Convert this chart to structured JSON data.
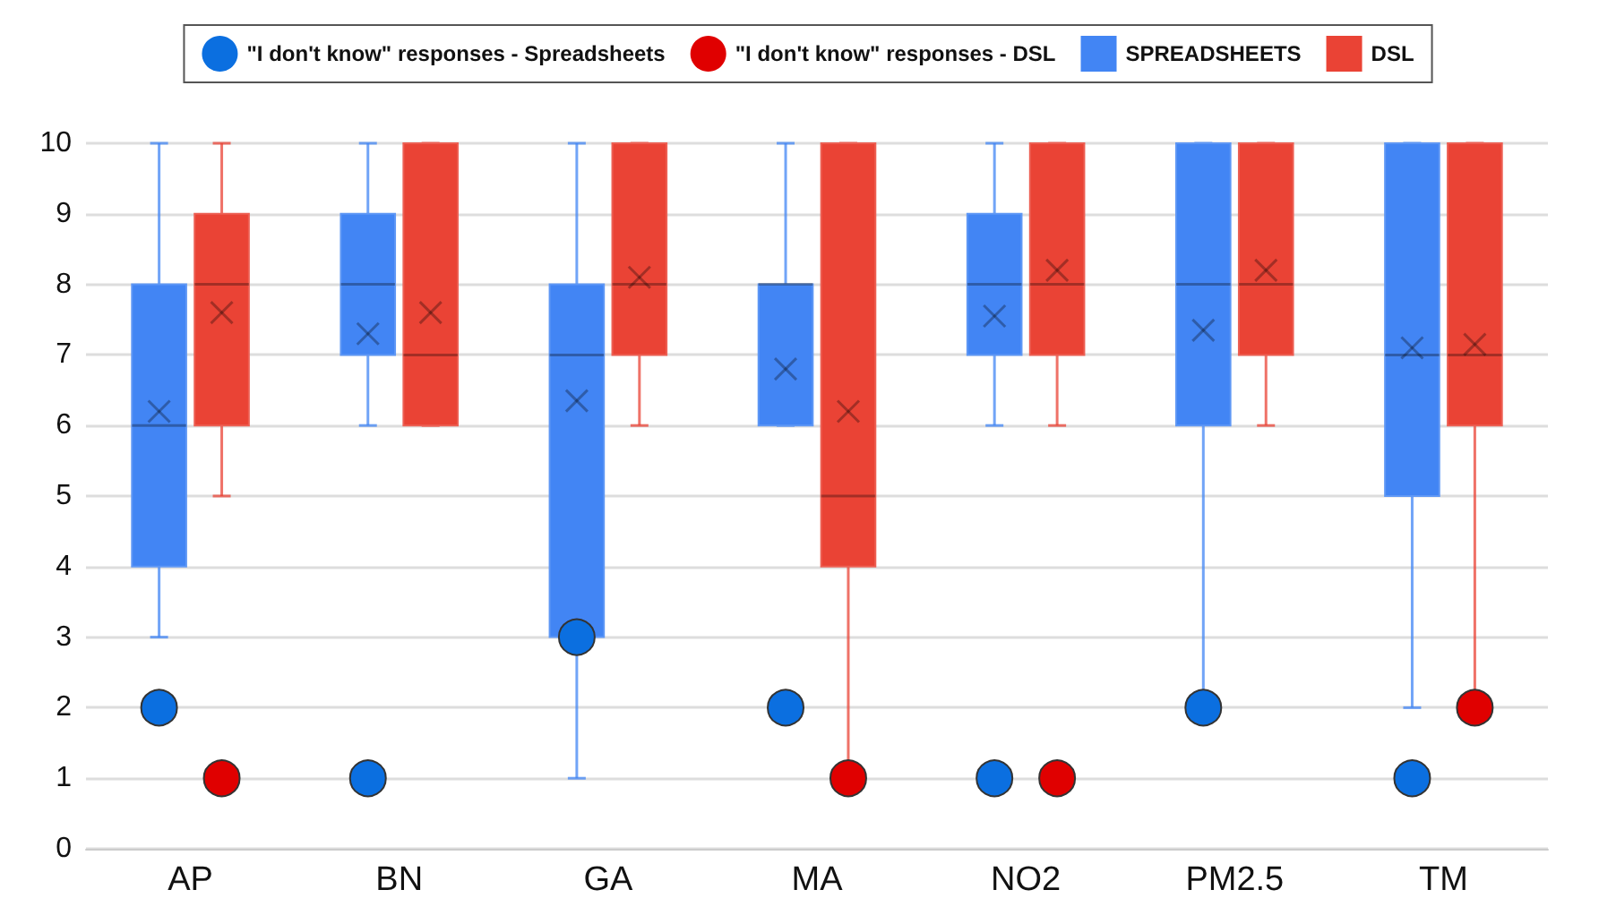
{
  "chart_data": {
    "type": "box",
    "categories": [
      "AP",
      "BN",
      "GA",
      "MA",
      "NO2",
      "PM2.5",
      "TM"
    ],
    "series": [
      {
        "name": "\"I don't know\" responses - Spreadsheets",
        "type": "scatter",
        "color": "#0b6fe0",
        "x": [
          "AP",
          "BN",
          "GA",
          "MA",
          "NO2",
          "PM2.5",
          "TM"
        ],
        "values": [
          2,
          1,
          3,
          2,
          1,
          2,
          1
        ]
      },
      {
        "name": "\"I don't know\" responses - DSL",
        "type": "scatter",
        "color": "#e00000",
        "x": [
          "AP",
          "BN",
          "GA",
          "MA",
          "NO2",
          "PM2.5",
          "TM"
        ],
        "values": [
          1,
          null,
          null,
          1,
          1,
          null,
          2
        ]
      },
      {
        "name": "SPREADSHEETS",
        "color": "#4285f4",
        "boxes": [
          {
            "low": 3,
            "q1": 4,
            "median": 6,
            "q3": 8,
            "high": 10,
            "mean": 6.2
          },
          {
            "low": 6,
            "q1": 7,
            "median": 8,
            "q3": 9,
            "high": 10,
            "mean": 7.3
          },
          {
            "low": 1,
            "q1": 3,
            "median": 7,
            "q3": 8,
            "high": 10,
            "mean": 6.35
          },
          {
            "low": 6,
            "q1": 6,
            "median": 8,
            "q3": 8,
            "high": 10,
            "mean": 6.8
          },
          {
            "low": 6,
            "q1": 7,
            "median": 8,
            "q3": 9,
            "high": 10,
            "mean": 7.55
          },
          {
            "low": 2,
            "q1": 6,
            "median": 8,
            "q3": 10,
            "high": 10,
            "mean": 7.35
          },
          {
            "low": 2,
            "q1": 5,
            "median": 7,
            "q3": 10,
            "high": 10,
            "mean": 7.1
          }
        ]
      },
      {
        "name": "DSL",
        "color": "#ea4335",
        "boxes": [
          {
            "low": 5,
            "q1": 6,
            "median": 8,
            "q3": 9,
            "high": 10,
            "mean": 7.6
          },
          {
            "low": 6,
            "q1": 6,
            "median": 7,
            "q3": 10,
            "high": 10,
            "mean": 7.6
          },
          {
            "low": 6,
            "q1": 7,
            "median": 8,
            "q3": 10,
            "high": 10,
            "mean": 8.1
          },
          {
            "low": 1,
            "q1": 4,
            "median": 5,
            "q3": 10,
            "high": 10,
            "mean": 6.2
          },
          {
            "low": 6,
            "q1": 7,
            "median": 8,
            "q3": 10,
            "high": 10,
            "mean": 8.2
          },
          {
            "low": 6,
            "q1": 7,
            "median": 8,
            "q3": 10,
            "high": 10,
            "mean": 8.2
          },
          {
            "low": 2,
            "q1": 6,
            "median": 7,
            "q3": 10,
            "high": 10,
            "mean": 7.15
          }
        ]
      }
    ],
    "ylim": [
      0,
      10
    ],
    "yticks": [
      0,
      1,
      2,
      3,
      4,
      5,
      6,
      7,
      8,
      9,
      10
    ],
    "grid": "y",
    "legend": "top"
  }
}
